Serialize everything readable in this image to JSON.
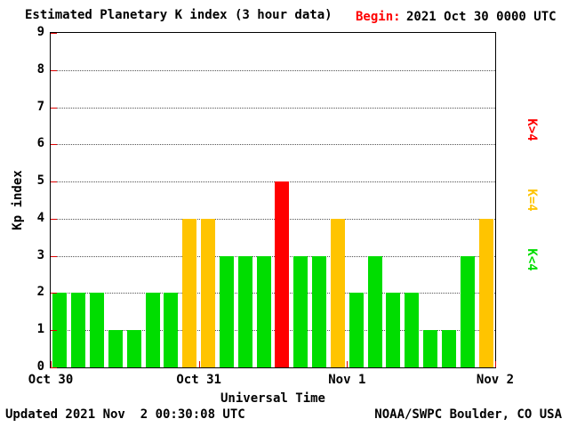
{
  "header": {
    "title": "Estimated Planetary K index (3 hour data)",
    "begin_label": "Begin:",
    "begin_value": "2021 Oct 30 0000 UTC"
  },
  "footer": {
    "updated": "Updated 2021 Nov  2 00:30:08 UTC",
    "credit": "NOAA/SWPC Boulder, CO USA"
  },
  "chart_data": {
    "type": "bar",
    "title": "Estimated Planetary K index (3 hour data)",
    "xlabel": "Universal Time",
    "ylabel": "Kp index",
    "ylim": [
      0,
      9
    ],
    "y_ticks": [
      0,
      1,
      2,
      3,
      4,
      5,
      6,
      7,
      8,
      9
    ],
    "x_tick_labels": [
      "Oct 30",
      "Oct 31",
      "Nov 1",
      "Nov 2"
    ],
    "hours_per_bar": 3,
    "values": [
      2,
      2,
      2,
      1,
      1,
      2,
      2,
      4,
      4,
      3,
      3,
      3,
      5,
      3,
      3,
      4,
      2,
      3,
      2,
      2,
      1,
      1,
      3,
      4
    ],
    "color_rules": {
      "below_4": "#00dd00",
      "equal_4": "#ffc400",
      "above_4": "#ff0000"
    },
    "legend": [
      {
        "label": "K>4",
        "color": "#ff0000"
      },
      {
        "label": "K=4",
        "color": "#ffc400"
      },
      {
        "label": "K<4",
        "color": "#00dd00"
      }
    ],
    "grid": "dotted horizontal",
    "tick_color": "#dd0000",
    "legend_position": "right"
  }
}
